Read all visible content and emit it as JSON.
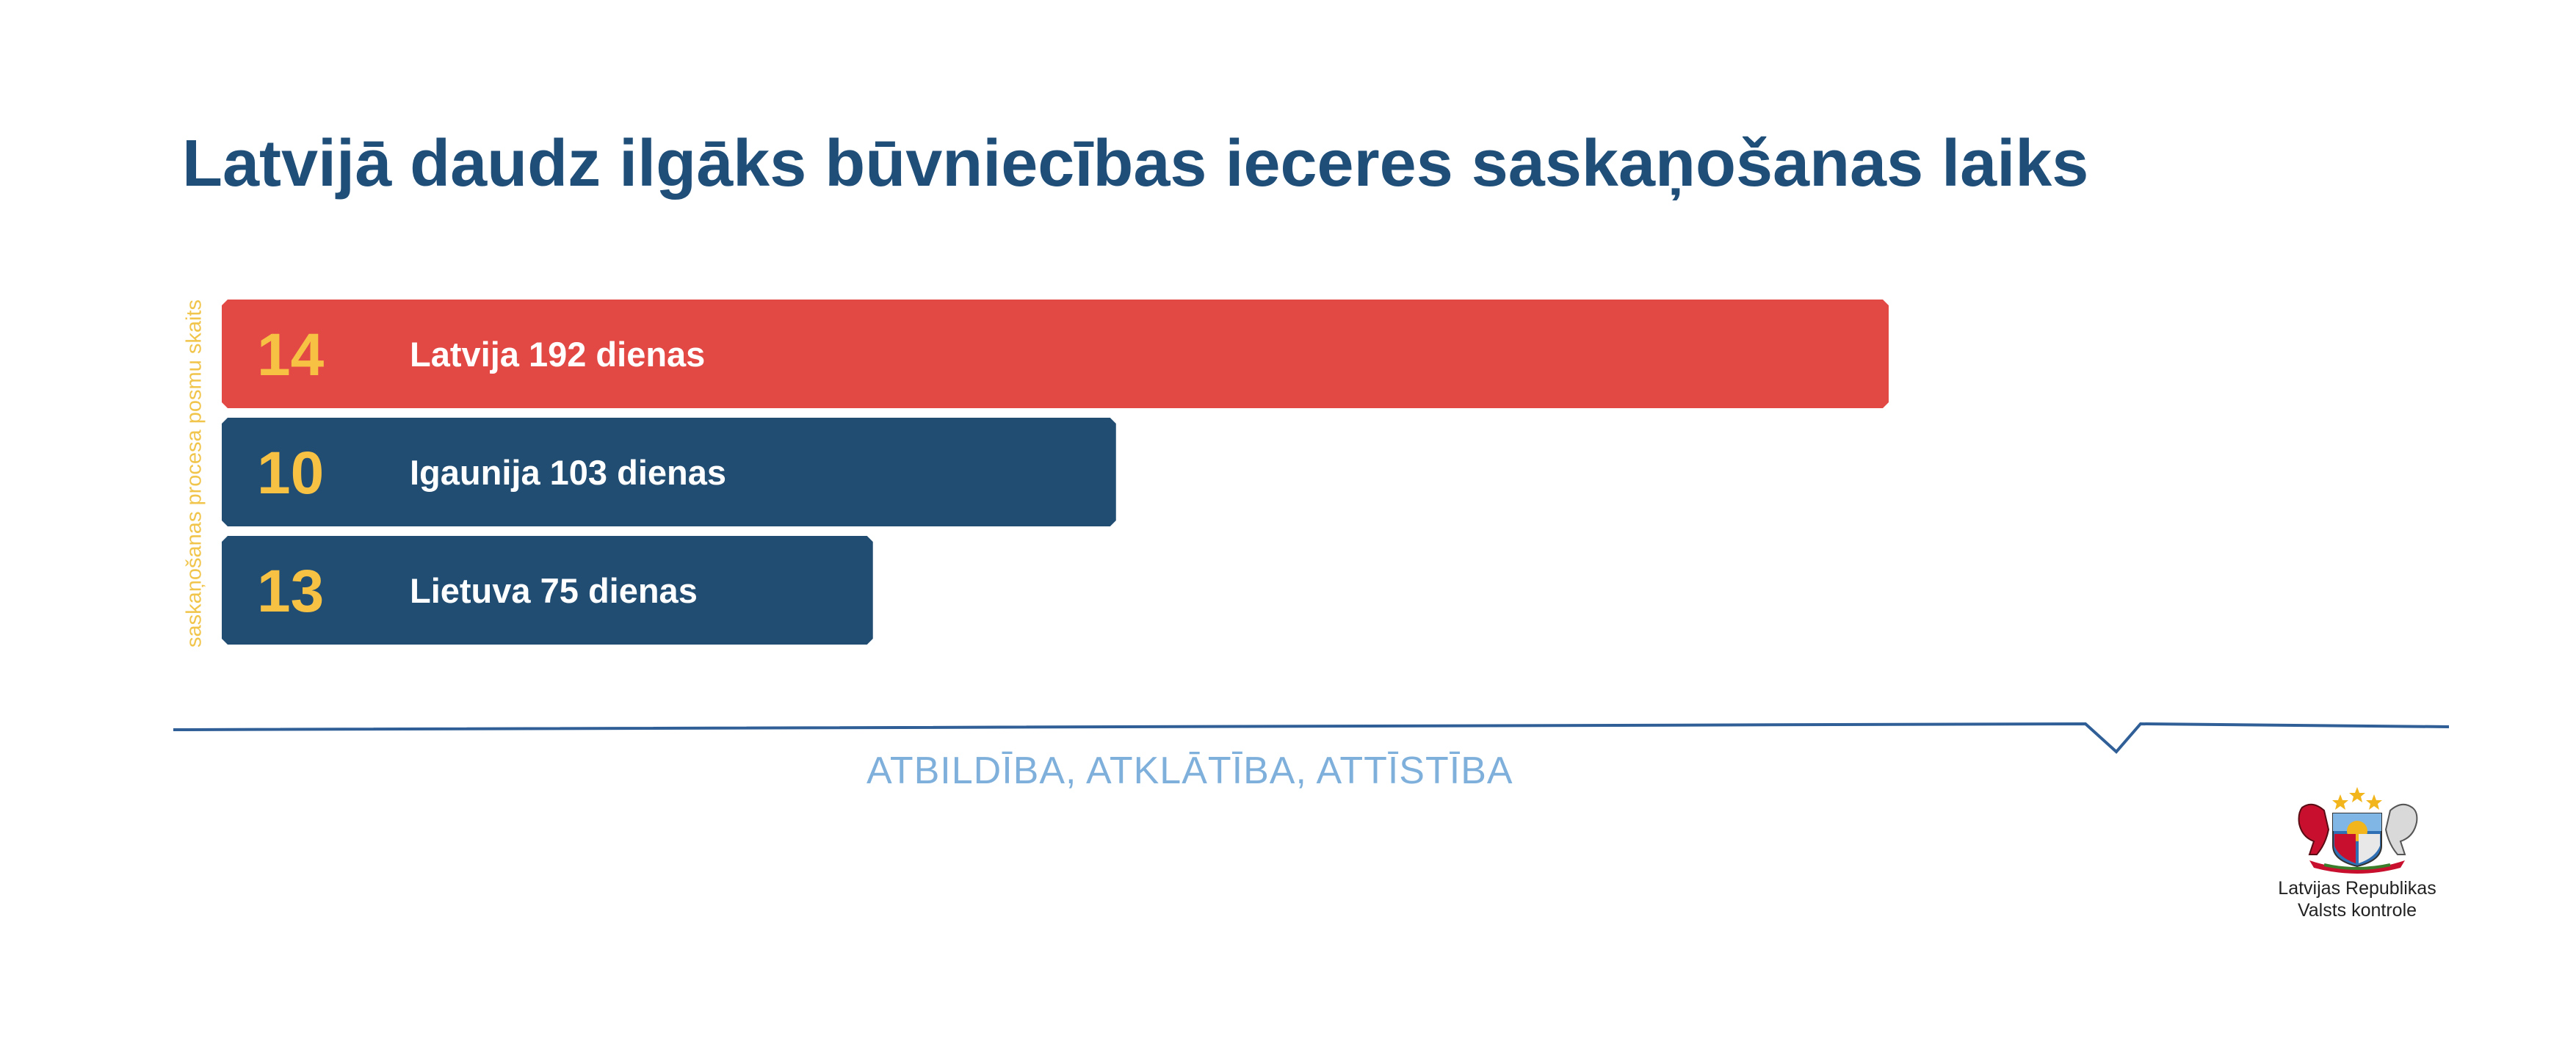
{
  "header": {
    "title": "Latvijā daudz ilgāks būvniecības ieceres saskaņošanas laiks"
  },
  "chart_data": {
    "type": "bar",
    "orientation": "horizontal",
    "title": "Latvijā daudz ilgāks būvniecības ieceres saskaņošanas laiks",
    "ylabel": "saskaņošanas procesa posmu skaits",
    "xlabel": "",
    "unit": "dienas",
    "grid": false,
    "legend": "none",
    "xlim": [
      0,
      192
    ],
    "categories": [
      "Latvija",
      "Igaunija",
      "Lietuva"
    ],
    "values": [
      192,
      103,
      75
    ],
    "bar_labels": [
      "Latvija 192 dienas",
      "Igaunija 103 dienas",
      "Lietuva 75 dienas"
    ],
    "stage_counts": [
      14,
      10,
      13
    ],
    "colors": [
      "#e24844",
      "#214d72",
      "#214d72"
    ],
    "count_color": "#f7c244"
  },
  "footer": {
    "motto": "ATBILDĪBA, ATKLĀTĪBA, ATTĪSTĪBA",
    "org_line1": "Latvijas Republikas",
    "org_line2": "Valsts kontrole",
    "line_color": "#2f5f96",
    "emblem_icon": "coat-of-arms-icon"
  }
}
